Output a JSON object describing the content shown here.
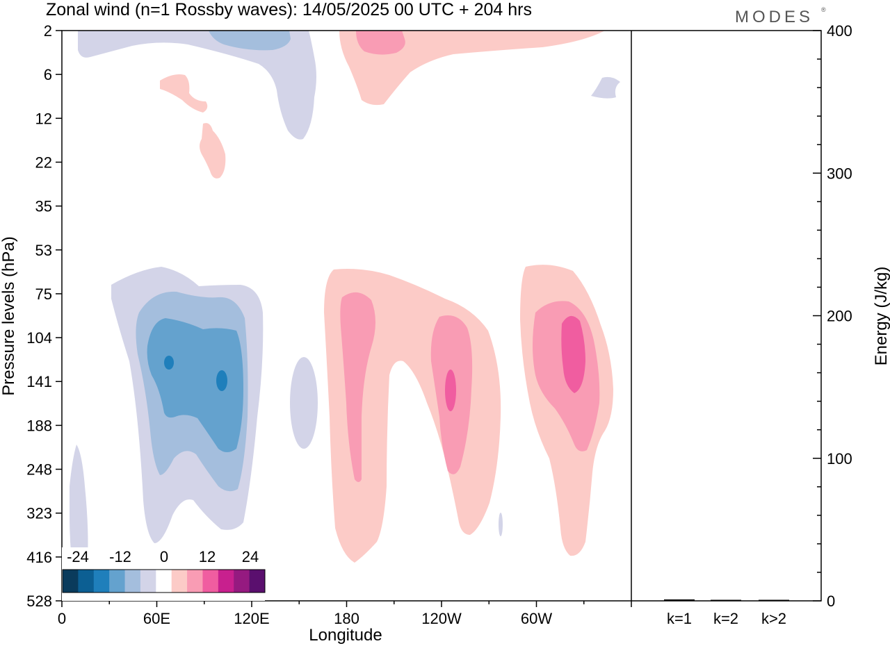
{
  "chart_data": {
    "type": "heatmap",
    "title": "Zonal wind (n=1 Rossby waves):  14/05/2025  00 UTC  + 204 hrs",
    "brand": "MODES",
    "xlabel": "Longitude",
    "ylabel": "Pressure levels (hPa)",
    "x_ticks": [
      "0",
      "60E",
      "120E",
      "180",
      "120W",
      "60W"
    ],
    "y_ticks": [
      "2",
      "6",
      "12",
      "22",
      "35",
      "53",
      "75",
      "104",
      "141",
      "188",
      "248",
      "323",
      "416",
      "528"
    ],
    "colorbar": {
      "tick_labels": [
        "-24",
        "-12",
        "0",
        "12",
        "24"
      ],
      "colors": [
        "#0a3b5c",
        "#0c5f93",
        "#1f7fbb",
        "#64a2ce",
        "#a4bedd",
        "#d3d4e8",
        "#ffffff",
        "#fccbc7",
        "#f99cb4",
        "#f05da0",
        "#c8208e",
        "#951a80",
        "#5a0f6e"
      ]
    },
    "energy_panel": {
      "type": "bar",
      "ylabel": "Energy (J/kg)",
      "ylim": [
        0,
        400
      ],
      "y_ticks": [
        "0",
        "100",
        "200",
        "300",
        "400"
      ],
      "categories": [
        "k=1",
        "k=2",
        "k>2"
      ],
      "values": [
        1.0,
        0.3,
        0.4
      ]
    }
  }
}
